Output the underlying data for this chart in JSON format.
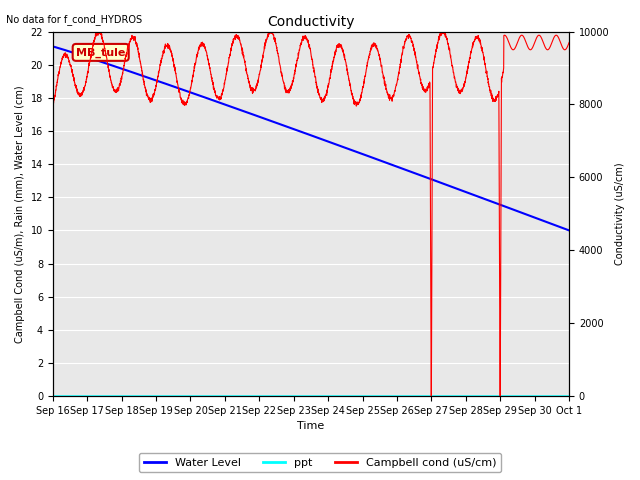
{
  "title": "Conductivity",
  "top_left_text": "No data for f_cond_HYDROS",
  "ylabel_left": "Campbell Cond (uS/m), Rain (mm), Water Level (cm)",
  "ylabel_right": "Conductivity (uS/cm)",
  "xlabel": "Time",
  "ylim_left": [
    0,
    22
  ],
  "ylim_right": [
    0,
    10000
  ],
  "bg_color": "#e8e8e8",
  "legend_box_label": "MB_tule",
  "water_level_color": "#0000ff",
  "ppt_color": "#00ffff",
  "campbell_color": "#ff0000",
  "x_tick_labels": [
    "Sep 16",
    "Sep 17",
    "Sep 18",
    "Sep 19",
    "Sep 20",
    "Sep 21",
    "Sep 22",
    "Sep 23",
    "Sep 24",
    "Sep 25",
    "Sep 26",
    "Sep 27",
    "Sep 28",
    "Sep 29",
    "Sep 30",
    "Oct 1"
  ],
  "num_days": 15,
  "title_fontsize": 10,
  "axis_label_fontsize": 7,
  "tick_fontsize": 7,
  "legend_fontsize": 8
}
